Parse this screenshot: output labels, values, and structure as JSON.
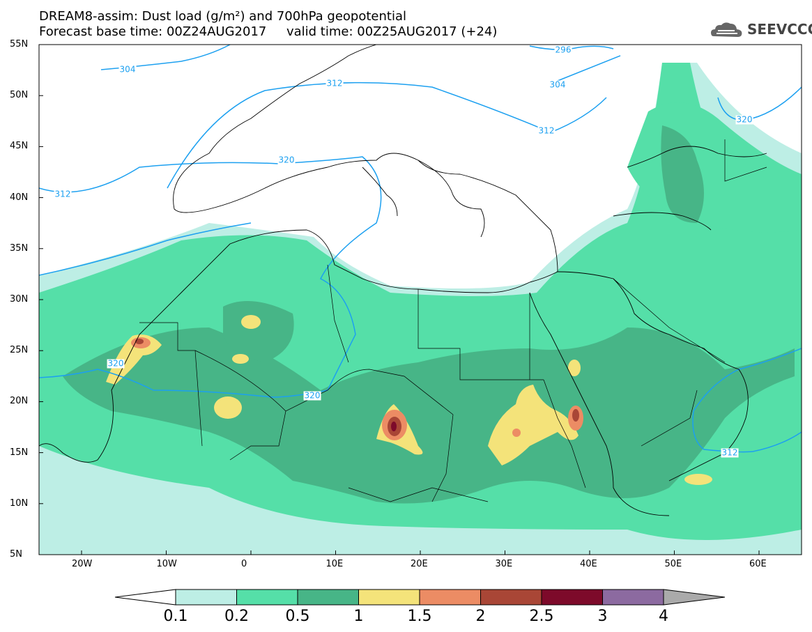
{
  "header": {
    "title_line1": "DREAM8-assim: Dust load (g/m²) and 700hPa geopotential",
    "title_line2": "Forecast base time: 00Z24AUG2017     valid time: 00Z25AUG2017 (+24)",
    "logo_text": "SEEVCCC"
  },
  "map": {
    "lat_labels": [
      "55N",
      "50N",
      "45N",
      "40N",
      "35N",
      "30N",
      "25N",
      "20N",
      "15N",
      "10N",
      "5N"
    ],
    "lon_labels": [
      "20W",
      "10W",
      "0",
      "10E",
      "20E",
      "30E",
      "40E",
      "50E",
      "60E"
    ],
    "contour_labels": [
      "304",
      "312",
      "296",
      "304",
      "312",
      "320",
      "312",
      "320",
      "320",
      "320",
      "312"
    ],
    "fill_colors": {
      "c01": "#bdeee5",
      "c02": "#55dfa8",
      "c05": "#47b587",
      "c1": "#f4e37a",
      "c15": "#ec8c64",
      "c2": "#a94636",
      "c25": "#7d0a2a",
      "c3": "#8c6aa0",
      "c4": "#aaaaaa",
      "contour": "#1ca0f0"
    }
  },
  "colorbar": {
    "labels": [
      "0.1",
      "0.2",
      "0.5",
      "1",
      "1.5",
      "2",
      "2.5",
      "3",
      "4"
    ]
  }
}
